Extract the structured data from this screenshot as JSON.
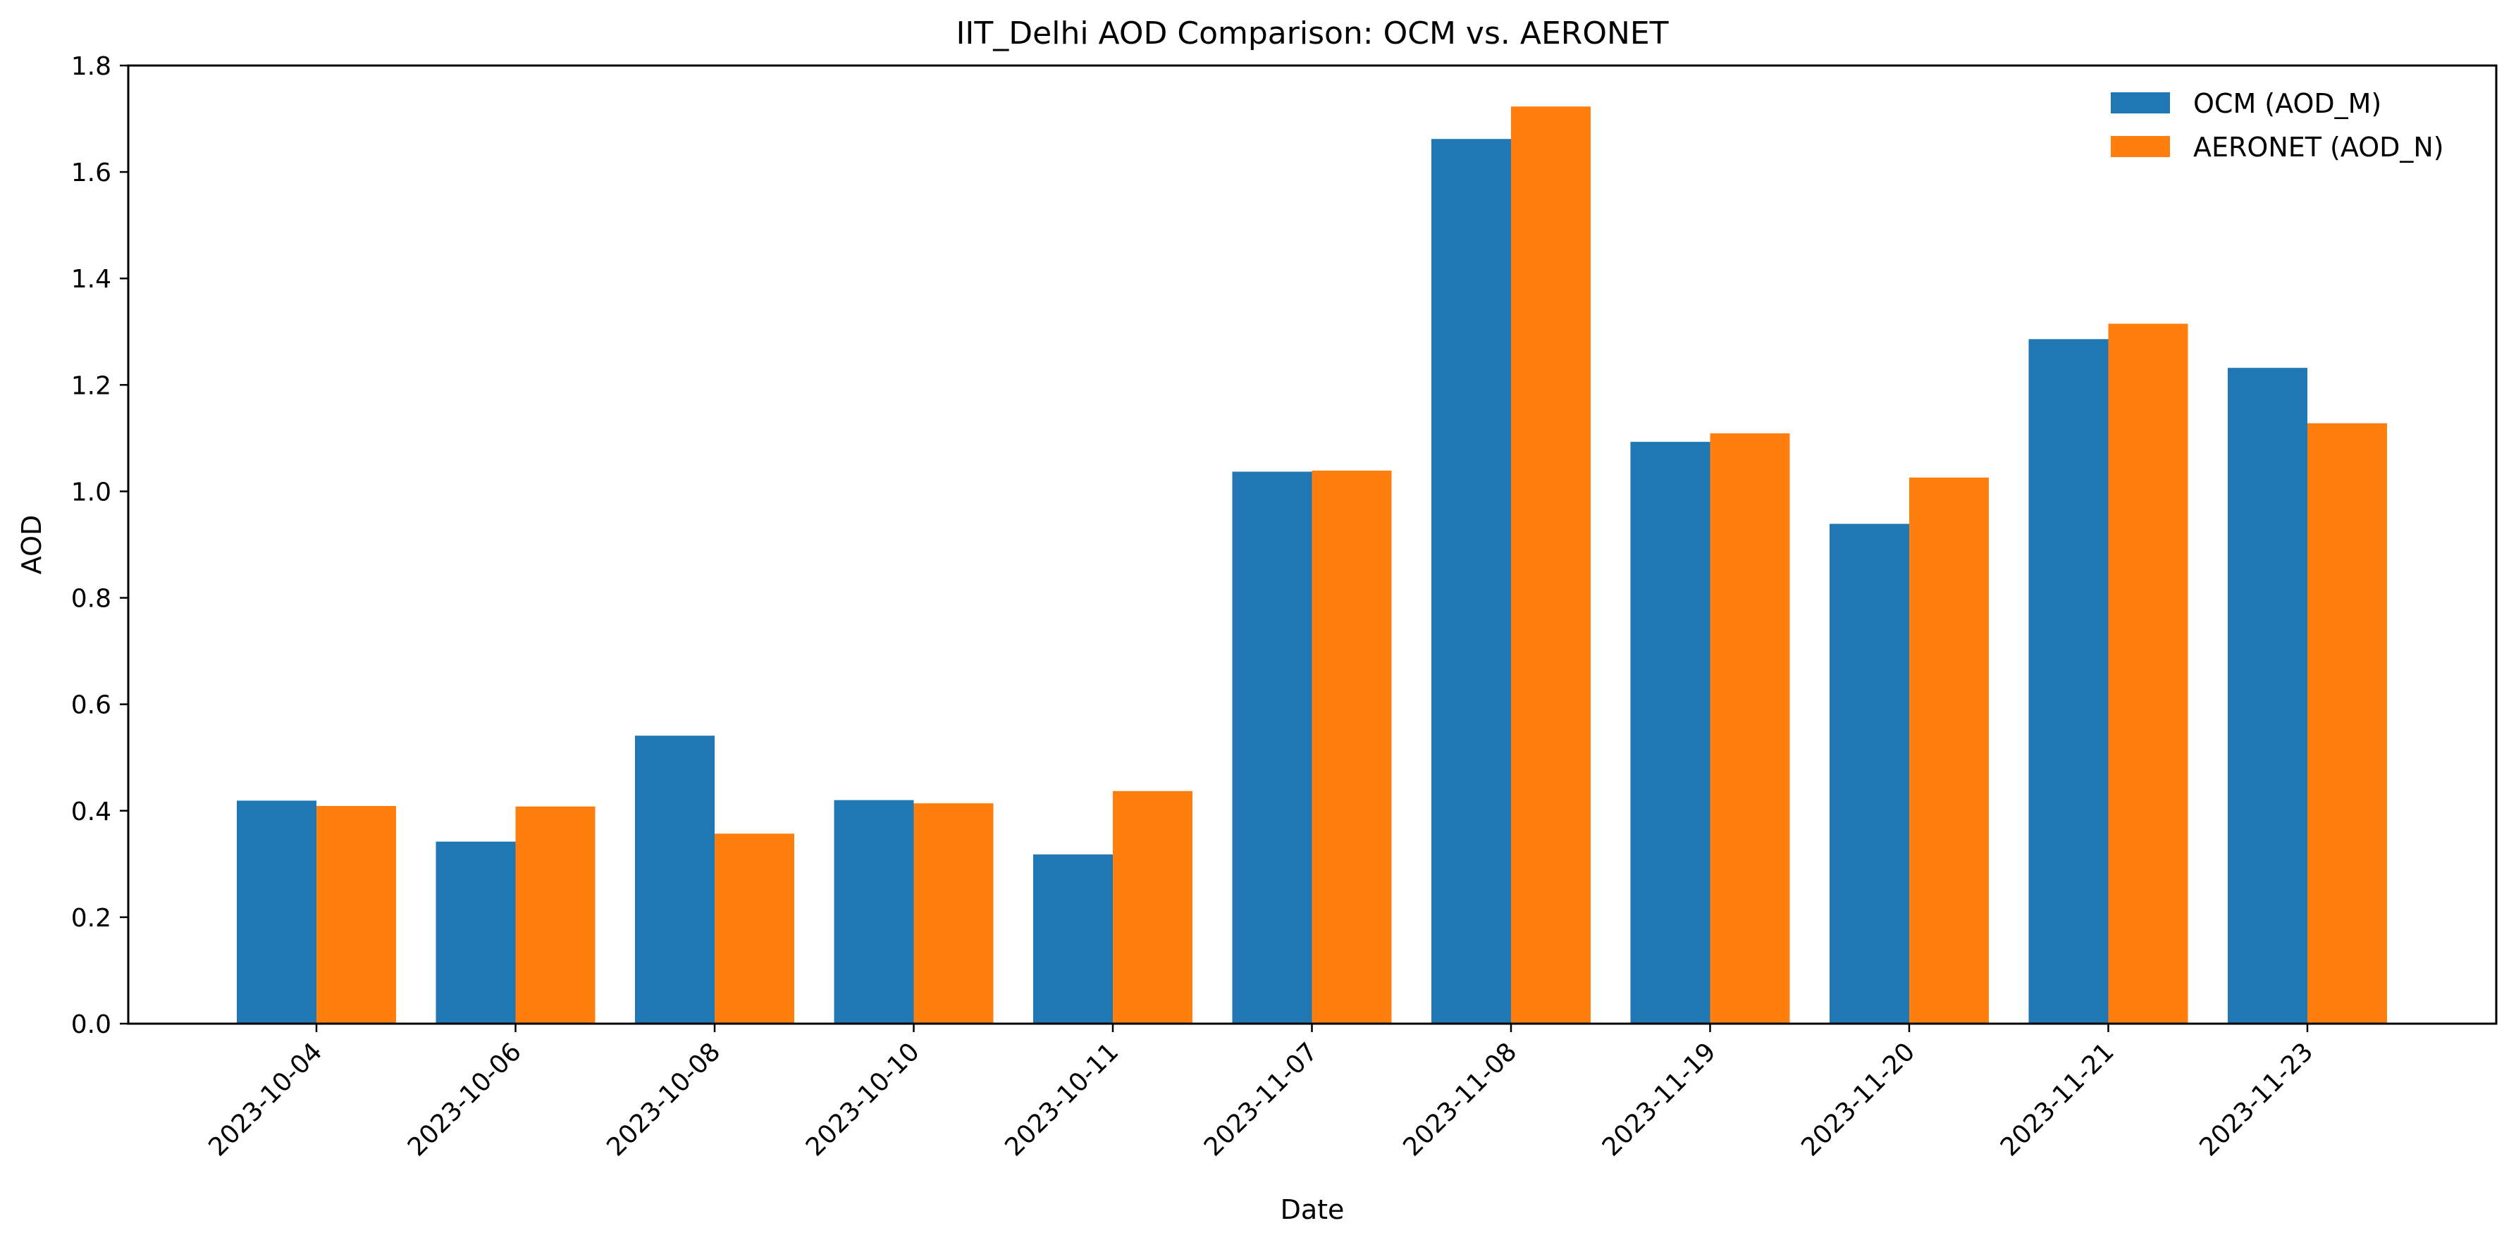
{
  "chart_data": {
    "type": "bar",
    "title": "IIT_Delhi AOD Comparison: OCM vs. AERONET",
    "xlabel": "Date",
    "ylabel": "AOD",
    "categories": [
      "2023-10-04",
      "2023-10-06",
      "2023-10-08",
      "2023-10-10",
      "2023-10-11",
      "2023-11-07",
      "2023-11-08",
      "2023-11-19",
      "2023-11-20",
      "2023-11-21",
      "2023-11-23"
    ],
    "series": [
      {
        "name": "OCM (AOD_M)",
        "color": "#1f77b4",
        "values": [
          0.419,
          0.342,
          0.541,
          0.42,
          0.318,
          1.037,
          1.662,
          1.093,
          0.939,
          1.286,
          1.232
        ]
      },
      {
        "name": "AERONET (AOD_N)",
        "color": "#ff7f0e",
        "values": [
          0.409,
          0.408,
          0.357,
          0.414,
          0.437,
          1.039,
          1.723,
          1.109,
          1.026,
          1.315,
          1.128
        ]
      }
    ],
    "ylim": [
      0,
      1.8
    ],
    "yticks": [
      0.0,
      0.2,
      0.4,
      0.6,
      0.8,
      1.0,
      1.2,
      1.4,
      1.6,
      1.8
    ],
    "ytick_labels": [
      "0.0",
      "0.2",
      "0.4",
      "0.6",
      "0.8",
      "1.0",
      "1.2",
      "1.4",
      "1.6",
      "1.8"
    ],
    "grid": false,
    "legend_position": "top-right",
    "xtick_rotation": "45-degree"
  }
}
